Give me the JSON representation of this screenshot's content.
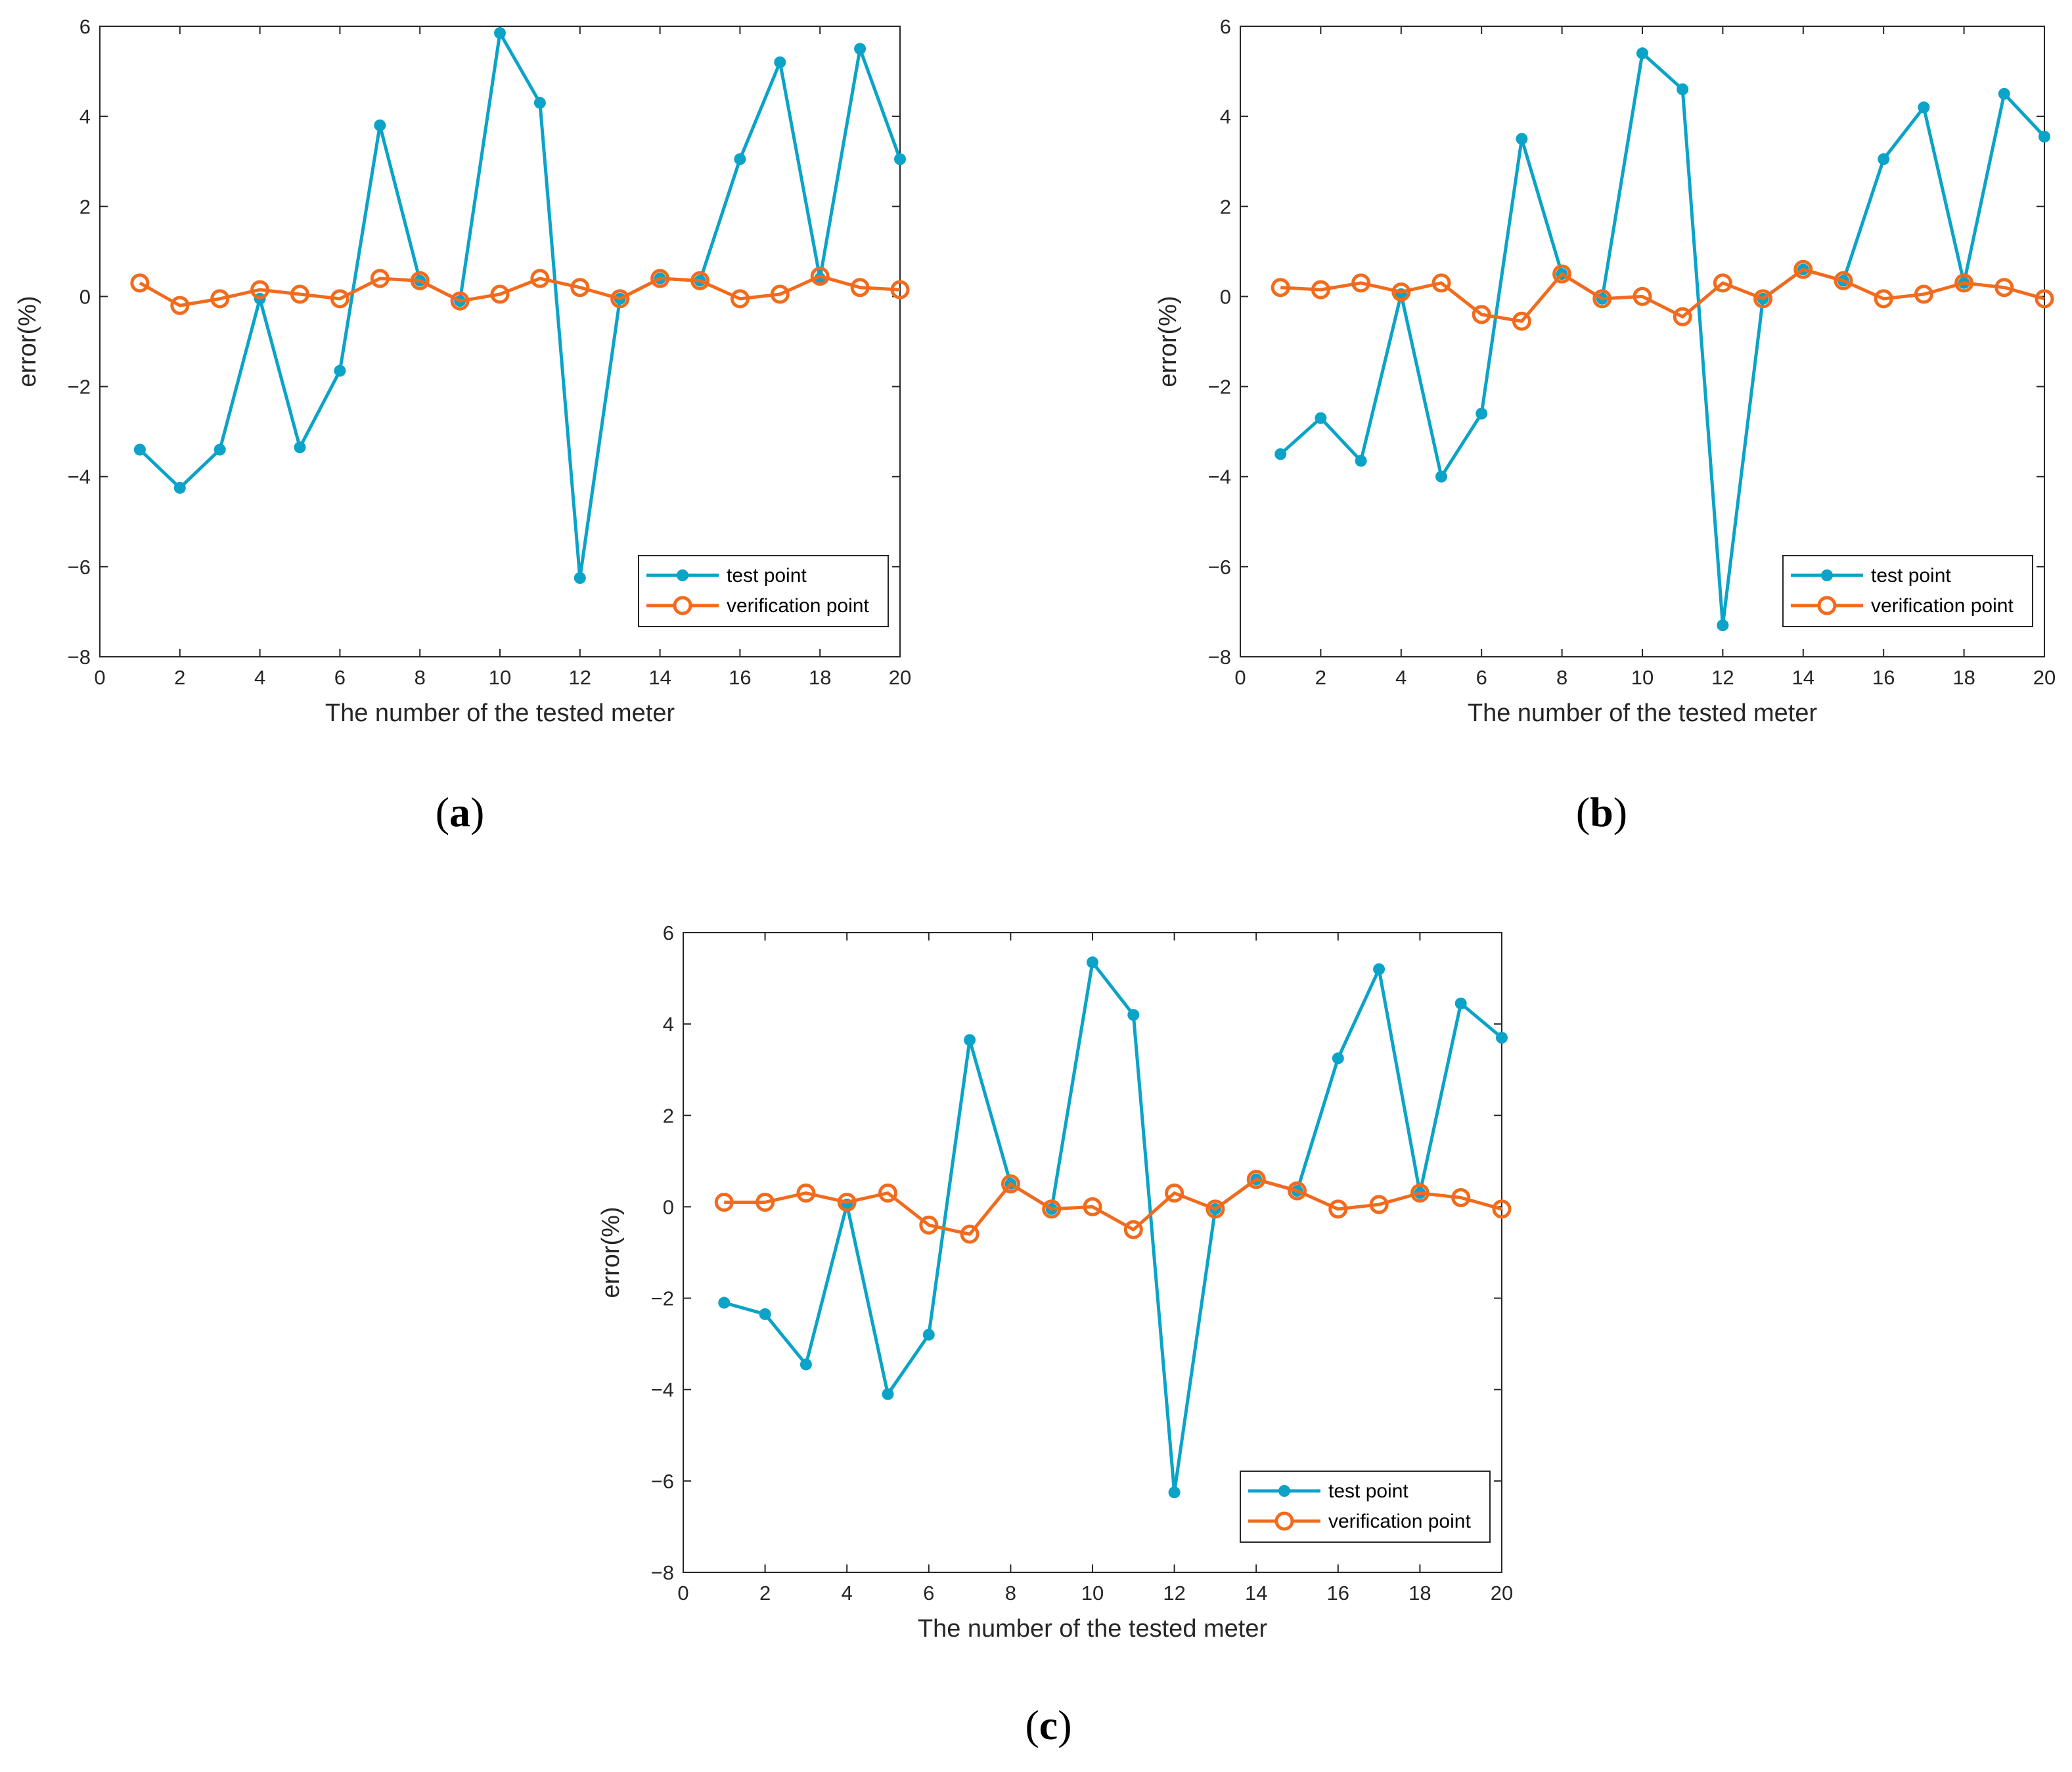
{
  "colors": {
    "test": "#0BA3C8",
    "verify": "#F26B1D",
    "axis": "#262626"
  },
  "chart_data": [
    {
      "type": "line",
      "panel": "a",
      "xlabel": "The number of the tested meter",
      "ylabel": "error(%)",
      "xlim": [
        0,
        20
      ],
      "ylim": [
        -8,
        6
      ],
      "xticks": [
        "0",
        "2",
        "4",
        "6",
        "8",
        "10",
        "12",
        "14",
        "16",
        "18",
        "20"
      ],
      "yticks": [
        "6",
        "4",
        "2",
        "0",
        "−2",
        "−4",
        "−6",
        "−8"
      ],
      "x": [
        1,
        2,
        3,
        4,
        5,
        6,
        7,
        8,
        9,
        10,
        11,
        12,
        13,
        14,
        15,
        16,
        17,
        18,
        19,
        20
      ],
      "series": [
        {
          "name": "test point",
          "marker": "filled",
          "values": [
            -3.4,
            -4.25,
            -3.4,
            -0.05,
            -3.35,
            -1.65,
            3.8,
            0.35,
            -0.1,
            5.85,
            4.3,
            -6.25,
            -0.05,
            0.4,
            0.35,
            3.05,
            5.2,
            0.4,
            5.5,
            3.05
          ]
        },
        {
          "name": "verification point",
          "marker": "hollow",
          "values": [
            0.3,
            -0.2,
            -0.05,
            0.15,
            0.05,
            -0.05,
            0.4,
            0.35,
            -0.1,
            0.05,
            0.4,
            0.2,
            -0.05,
            0.4,
            0.35,
            -0.05,
            0.05,
            0.45,
            0.2,
            0.15
          ]
        }
      ],
      "legend": [
        "test point",
        "verification point"
      ],
      "legend_position": "bottom-right"
    },
    {
      "type": "line",
      "panel": "b",
      "xlabel": "The number of the tested meter",
      "ylabel": "error(%)",
      "xlim": [
        0,
        20
      ],
      "ylim": [
        -8,
        6
      ],
      "xticks": [
        "0",
        "2",
        "4",
        "6",
        "8",
        "10",
        "12",
        "14",
        "16",
        "18",
        "20"
      ],
      "yticks": [
        "6",
        "4",
        "2",
        "0",
        "−2",
        "−4",
        "−6",
        "−8"
      ],
      "x": [
        1,
        2,
        3,
        4,
        5,
        6,
        7,
        8,
        9,
        10,
        11,
        12,
        13,
        14,
        15,
        16,
        17,
        18,
        19,
        20
      ],
      "series": [
        {
          "name": "test point",
          "marker": "filled",
          "values": [
            -3.5,
            -2.7,
            -3.65,
            0.05,
            -4.0,
            -2.6,
            3.5,
            0.5,
            -0.05,
            5.4,
            4.6,
            -7.3,
            -0.05,
            0.6,
            0.35,
            3.05,
            4.2,
            0.3,
            4.5,
            3.55
          ]
        },
        {
          "name": "verification point",
          "marker": "hollow",
          "values": [
            0.2,
            0.15,
            0.3,
            0.1,
            0.3,
            -0.4,
            -0.55,
            0.5,
            -0.05,
            0.0,
            -0.45,
            0.3,
            -0.05,
            0.6,
            0.35,
            -0.05,
            0.05,
            0.3,
            0.2,
            -0.05
          ]
        }
      ],
      "legend": [
        "test point",
        "verification point"
      ],
      "legend_position": "bottom-right"
    },
    {
      "type": "line",
      "panel": "c",
      "xlabel": "The number of the tested meter",
      "ylabel": "error(%)",
      "xlim": [
        0,
        20
      ],
      "ylim": [
        -8,
        6
      ],
      "xticks": [
        "0",
        "2",
        "4",
        "6",
        "8",
        "10",
        "12",
        "14",
        "16",
        "18",
        "20"
      ],
      "yticks": [
        "6",
        "4",
        "2",
        "0",
        "−2",
        "−4",
        "−6",
        "−8"
      ],
      "x": [
        1,
        2,
        3,
        4,
        5,
        6,
        7,
        8,
        9,
        10,
        11,
        12,
        13,
        14,
        15,
        16,
        17,
        18,
        19,
        20
      ],
      "series": [
        {
          "name": "test point",
          "marker": "filled",
          "values": [
            -2.1,
            -2.35,
            -3.45,
            0.05,
            -4.1,
            -2.8,
            3.65,
            0.5,
            -0.05,
            5.35,
            4.2,
            -6.25,
            -0.05,
            0.6,
            0.35,
            3.25,
            5.2,
            0.3,
            4.45,
            3.7
          ]
        },
        {
          "name": "verification point",
          "marker": "hollow",
          "values": [
            0.1,
            0.1,
            0.3,
            0.1,
            0.3,
            -0.4,
            -0.6,
            0.5,
            -0.05,
            0.0,
            -0.5,
            0.3,
            -0.05,
            0.6,
            0.35,
            -0.05,
            0.05,
            0.3,
            0.2,
            -0.05
          ]
        }
      ],
      "legend": [
        "test point",
        "verification point"
      ],
      "legend_position": "bottom-right"
    }
  ],
  "captions": [
    "a",
    "b",
    "c"
  ]
}
